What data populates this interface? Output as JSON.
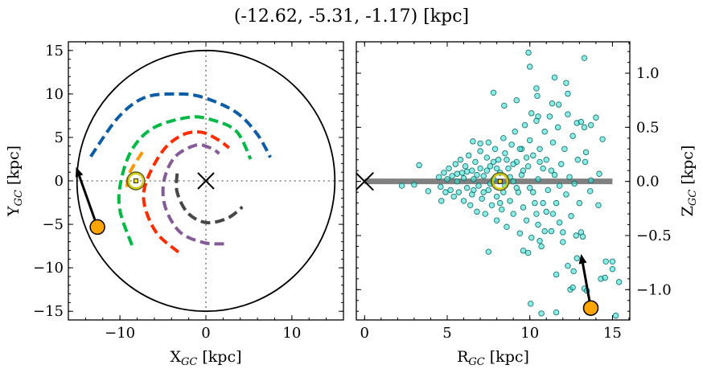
{
  "title": "(-12.62, -5.31, -1.17) [kpc]",
  "colors": {
    "blue": "#0C5DA5",
    "green": "#00B945",
    "orange": "#FF9500",
    "red": "#FF2C00",
    "purple": "#845B97",
    "darkgray": "#474747",
    "scatter_fill": "#40E0D0",
    "scatter_edge": "#0B6B6B",
    "marker": "#FFA500",
    "disk_line": "#808080",
    "sun": "#D4C800"
  },
  "chart_data": [
    {
      "type": "line",
      "panel": "face-on",
      "xlabel": "X",
      "xlabel_sub": "GC",
      "xlabel_unit": " [kpc]",
      "ylabel": "Y",
      "ylabel_sub": "GC",
      "ylabel_unit": " [kpc]",
      "xlim": [
        -16,
        16
      ],
      "ylim": [
        -16,
        16
      ],
      "xticks": [
        -10,
        0,
        10
      ],
      "xtick_labels": [
        "−10",
        "0",
        "10"
      ],
      "yticks": [
        15,
        10,
        5,
        0,
        -5,
        -10,
        -15
      ],
      "ytick_labels": [
        "15",
        "10",
        "5",
        "0",
        "−5",
        "−10",
        "−15"
      ],
      "x_minor_step": 2,
      "y_minor_step": 1,
      "boundary_circle_radius": 15,
      "galactic_center": [
        0,
        0
      ],
      "sun": [
        -8.15,
        0
      ],
      "object": [
        -12.62,
        -5.31
      ],
      "arrow_tip": [
        -15.1,
        1.6
      ],
      "orbits": [
        {
          "color": "blue",
          "points": [
            [
              -13.4,
              2.8
            ],
            [
              -10.2,
              7.3
            ],
            [
              -7.1,
              9.6
            ],
            [
              -3.3,
              10.0
            ],
            [
              -0.3,
              9.6
            ],
            [
              3.5,
              7.9
            ],
            [
              5.95,
              5.4
            ],
            [
              7.5,
              2.7
            ]
          ]
        },
        {
          "color": "green",
          "points": [
            [
              -8.6,
              -7.4
            ],
            [
              -10.0,
              -3.4
            ],
            [
              -9.9,
              -0.1
            ],
            [
              -8.6,
              3.6
            ],
            [
              -6.1,
              6.1
            ],
            [
              -2.1,
              7.3
            ],
            [
              0.4,
              7.1
            ],
            [
              3.5,
              5.75
            ],
            [
              5.2,
              2.5
            ]
          ]
        },
        {
          "color": "orange",
          "points": [
            [
              -7.4,
              3.3
            ],
            [
              -8.9,
              0.85
            ],
            [
              -9.2,
              -1.1
            ]
          ]
        },
        {
          "color": "red",
          "points": [
            [
              -3.2,
              -8.2
            ],
            [
              -5.8,
              -5.9
            ],
            [
              -7.2,
              -2.5
            ],
            [
              -6.8,
              0.25
            ],
            [
              -4.9,
              3.6
            ],
            [
              -2.7,
              5.3
            ],
            [
              -0.56,
              5.6
            ],
            [
              1.3,
              4.8
            ],
            [
              2.7,
              3.8
            ]
          ]
        },
        {
          "color": "purple",
          "points": [
            [
              2.1,
              -7.25
            ],
            [
              -0.25,
              -7.1
            ],
            [
              -3.0,
              -5.9
            ],
            [
              -4.7,
              -3.1
            ],
            [
              -4.9,
              -0.1
            ],
            [
              -3.65,
              2.7
            ],
            [
              -1.2,
              4.1
            ],
            [
              0.5,
              3.8
            ],
            [
              1.55,
              3.15
            ]
          ]
        },
        {
          "color": "darkgray",
          "points": [
            [
              -3.35,
              0.85
            ],
            [
              -3.35,
              -1.3
            ],
            [
              -2.1,
              -3.7
            ],
            [
              0.05,
              -4.8
            ],
            [
              2.5,
              -4.3
            ],
            [
              4.25,
              -3.0
            ]
          ]
        }
      ]
    },
    {
      "type": "scatter",
      "panel": "edge-on",
      "xlabel": "R",
      "xlabel_sub": "GC",
      "xlabel_unit": " [kpc]",
      "ylabel": "Z",
      "ylabel_sub": "GC",
      "ylabel_unit": " [kpc]",
      "xlim": [
        -0.5,
        16.05
      ],
      "ylim": [
        -1.28,
        1.29
      ],
      "xticks": [
        0,
        5,
        10,
        15
      ],
      "xtick_labels": [
        "0",
        "5",
        "10",
        "15"
      ],
      "yticks": [
        1.0,
        0.5,
        0.0,
        -0.5,
        -1.0
      ],
      "ytick_labels": [
        "1.0",
        "0.5",
        "0.0",
        "−0.5",
        "−1.0"
      ],
      "x_minor_step": 1,
      "y_minor_step": 0.1,
      "ylabel_side": "right",
      "disk_line": {
        "z": 0,
        "r_range": [
          0,
          15
        ]
      },
      "galactic_center": [
        0,
        0
      ],
      "sun": [
        8.2,
        0
      ],
      "object": [
        13.69,
        -1.17
      ],
      "arrow_tip": [
        13.1,
        -0.67
      ],
      "points": [
        [
          9.92,
          1.19
        ],
        [
          10.0,
          1.06
        ],
        [
          13.3,
          1.14
        ],
        [
          11.5,
          0.96
        ],
        [
          12.2,
          0.91
        ],
        [
          7.8,
          0.82
        ],
        [
          10.4,
          0.86
        ],
        [
          10.45,
          0.79
        ],
        [
          12.3,
          0.81
        ],
        [
          8.45,
          0.7
        ],
        [
          9.2,
          0.75
        ],
        [
          11.35,
          0.72
        ],
        [
          11.75,
          0.71
        ],
        [
          10.1,
          0.63
        ],
        [
          10.5,
          0.6
        ],
        [
          14.0,
          0.59
        ],
        [
          13.7,
          0.52
        ],
        [
          14.4,
          0.39
        ],
        [
          6.55,
          0.37
        ],
        [
          7.0,
          0.35
        ],
        [
          3.3,
          0.15
        ],
        [
          2.25,
          -0.04
        ],
        [
          3.0,
          -0.03
        ],
        [
          3.85,
          -0.09
        ],
        [
          4.65,
          -0.18
        ],
        [
          14.2,
          0.07
        ],
        [
          13.7,
          0.01
        ],
        [
          13.65,
          -0.09
        ],
        [
          14.15,
          -0.22
        ],
        [
          7.5,
          -0.65
        ],
        [
          9.6,
          -0.64
        ],
        [
          9.9,
          -0.66
        ],
        [
          10.9,
          -0.46
        ],
        [
          10.6,
          -0.55
        ],
        [
          12.0,
          -0.47
        ],
        [
          12.85,
          -0.71
        ],
        [
          12.3,
          -0.78
        ],
        [
          12.65,
          -0.83
        ],
        [
          11.6,
          -0.86
        ],
        [
          14.6,
          -0.74
        ],
        [
          15.0,
          -0.74
        ],
        [
          15.0,
          -0.81
        ],
        [
          14.3,
          -0.9
        ],
        [
          14.55,
          -0.89
        ],
        [
          15.4,
          -0.93
        ],
        [
          12.45,
          -1.0
        ],
        [
          12.6,
          -0.98
        ],
        [
          13.3,
          -0.99
        ],
        [
          13.45,
          -1.01
        ],
        [
          10.05,
          -1.13
        ],
        [
          10.7,
          -1.22
        ],
        [
          11.6,
          -1.21
        ],
        [
          15.2,
          -1.24
        ],
        [
          13.1,
          -0.47
        ],
        [
          13.2,
          -0.51
        ],
        [
          13.4,
          0.27
        ],
        [
          13.35,
          0.18
        ],
        [
          13.3,
          0.5
        ],
        [
          12.85,
          0.54
        ],
        [
          4.5,
          0.04
        ],
        [
          4.6,
          -0.05
        ],
        [
          4.8,
          0.08
        ],
        [
          4.9,
          -0.1
        ],
        [
          5.0,
          0.02
        ],
        [
          5.1,
          0.12
        ],
        [
          5.2,
          -0.08
        ],
        [
          5.3,
          0.05
        ],
        [
          5.4,
          -0.14
        ],
        [
          5.5,
          0.16
        ],
        [
          5.6,
          0.0
        ],
        [
          5.7,
          -0.1
        ],
        [
          5.8,
          0.2
        ],
        [
          5.9,
          0.08
        ],
        [
          6.0,
          -0.18
        ],
        [
          6.0,
          0.03
        ],
        [
          6.1,
          0.14
        ],
        [
          6.2,
          -0.06
        ],
        [
          6.3,
          0.24
        ],
        [
          6.4,
          -0.22
        ],
        [
          6.5,
          0.1
        ],
        [
          6.5,
          -0.12
        ],
        [
          6.6,
          0.02
        ],
        [
          6.7,
          0.18
        ],
        [
          6.8,
          -0.28
        ],
        [
          6.9,
          -0.04
        ],
        [
          7.0,
          0.28
        ],
        [
          7.0,
          0.12
        ],
        [
          7.1,
          -0.16
        ],
        [
          7.2,
          0.05
        ],
        [
          7.3,
          -0.3
        ],
        [
          7.4,
          0.22
        ],
        [
          7.5,
          -0.08
        ],
        [
          7.5,
          0.36
        ],
        [
          7.6,
          0.14
        ],
        [
          7.7,
          -0.22
        ],
        [
          7.8,
          0.02
        ],
        [
          7.9,
          0.3
        ],
        [
          8.0,
          -0.14
        ],
        [
          8.0,
          -0.36
        ],
        [
          8.1,
          0.2
        ],
        [
          8.2,
          0.08
        ],
        [
          8.3,
          -0.26
        ],
        [
          8.4,
          0.4
        ],
        [
          8.5,
          -0.04
        ],
        [
          8.5,
          0.26
        ],
        [
          8.6,
          -0.42
        ],
        [
          8.7,
          0.12
        ],
        [
          8.8,
          -0.18
        ],
        [
          8.9,
          0.34
        ],
        [
          9.0,
          0.0
        ],
        [
          9.0,
          -0.3
        ],
        [
          9.1,
          0.46
        ],
        [
          9.2,
          0.18
        ],
        [
          9.3,
          -0.1
        ],
        [
          9.4,
          -0.48
        ],
        [
          9.5,
          0.3
        ],
        [
          9.5,
          0.06
        ],
        [
          9.6,
          -0.24
        ],
        [
          9.7,
          0.52
        ],
        [
          9.8,
          -0.36
        ],
        [
          9.9,
          0.14
        ],
        [
          10.0,
          -0.06
        ],
        [
          10.0,
          0.38
        ],
        [
          10.1,
          -0.52
        ],
        [
          10.2,
          0.24
        ],
        [
          10.3,
          -0.2
        ],
        [
          10.4,
          0.56
        ],
        [
          10.5,
          0.02
        ],
        [
          10.5,
          -0.4
        ],
        [
          10.6,
          0.3
        ],
        [
          10.7,
          -0.6
        ],
        [
          10.8,
          0.12
        ],
        [
          10.9,
          0.46
        ],
        [
          11.0,
          -0.28
        ],
        [
          11.0,
          0.2
        ],
        [
          11.1,
          -0.08
        ],
        [
          11.2,
          0.6
        ],
        [
          11.3,
          -0.46
        ],
        [
          11.4,
          0.36
        ],
        [
          11.5,
          0.06
        ],
        [
          11.6,
          -0.2
        ],
        [
          11.7,
          0.5
        ],
        [
          11.8,
          -0.38
        ],
        [
          11.9,
          0.16
        ],
        [
          12.0,
          -0.56
        ],
        [
          12.1,
          0.3
        ],
        [
          12.2,
          -0.12
        ],
        [
          12.3,
          0.62
        ],
        [
          12.4,
          0.04
        ],
        [
          12.5,
          -0.32
        ],
        [
          12.6,
          0.42
        ],
        [
          12.8,
          -0.5
        ],
        [
          12.9,
          0.2
        ],
        [
          13.0,
          -0.2
        ],
        [
          13.1,
          0.55
        ],
        [
          12.7,
          -0.02
        ],
        [
          5.6,
          0.07
        ],
        [
          6.2,
          0.09
        ],
        [
          6.8,
          0.06
        ],
        [
          7.2,
          -0.1
        ],
        [
          7.6,
          -0.02
        ],
        [
          8.0,
          0.12
        ],
        [
          8.4,
          -0.1
        ],
        [
          8.8,
          0.04
        ],
        [
          9.2,
          -0.06
        ],
        [
          9.6,
          0.1
        ],
        [
          10.2,
          -0.1
        ],
        [
          10.8,
          -0.2
        ],
        [
          11.3,
          0.1
        ],
        [
          11.8,
          -0.04
        ],
        [
          9.8,
          0.22
        ],
        [
          10.6,
          0.18
        ],
        [
          11.4,
          -0.3
        ],
        [
          8.2,
          -0.2
        ],
        [
          7.8,
          0.18
        ],
        [
          9.4,
          0.3
        ],
        [
          6.6,
          -0.08
        ],
        [
          7.4,
          0.1
        ],
        [
          8.6,
          0.2
        ],
        [
          9.0,
          0.16
        ],
        [
          10.4,
          -0.3
        ]
      ]
    }
  ]
}
